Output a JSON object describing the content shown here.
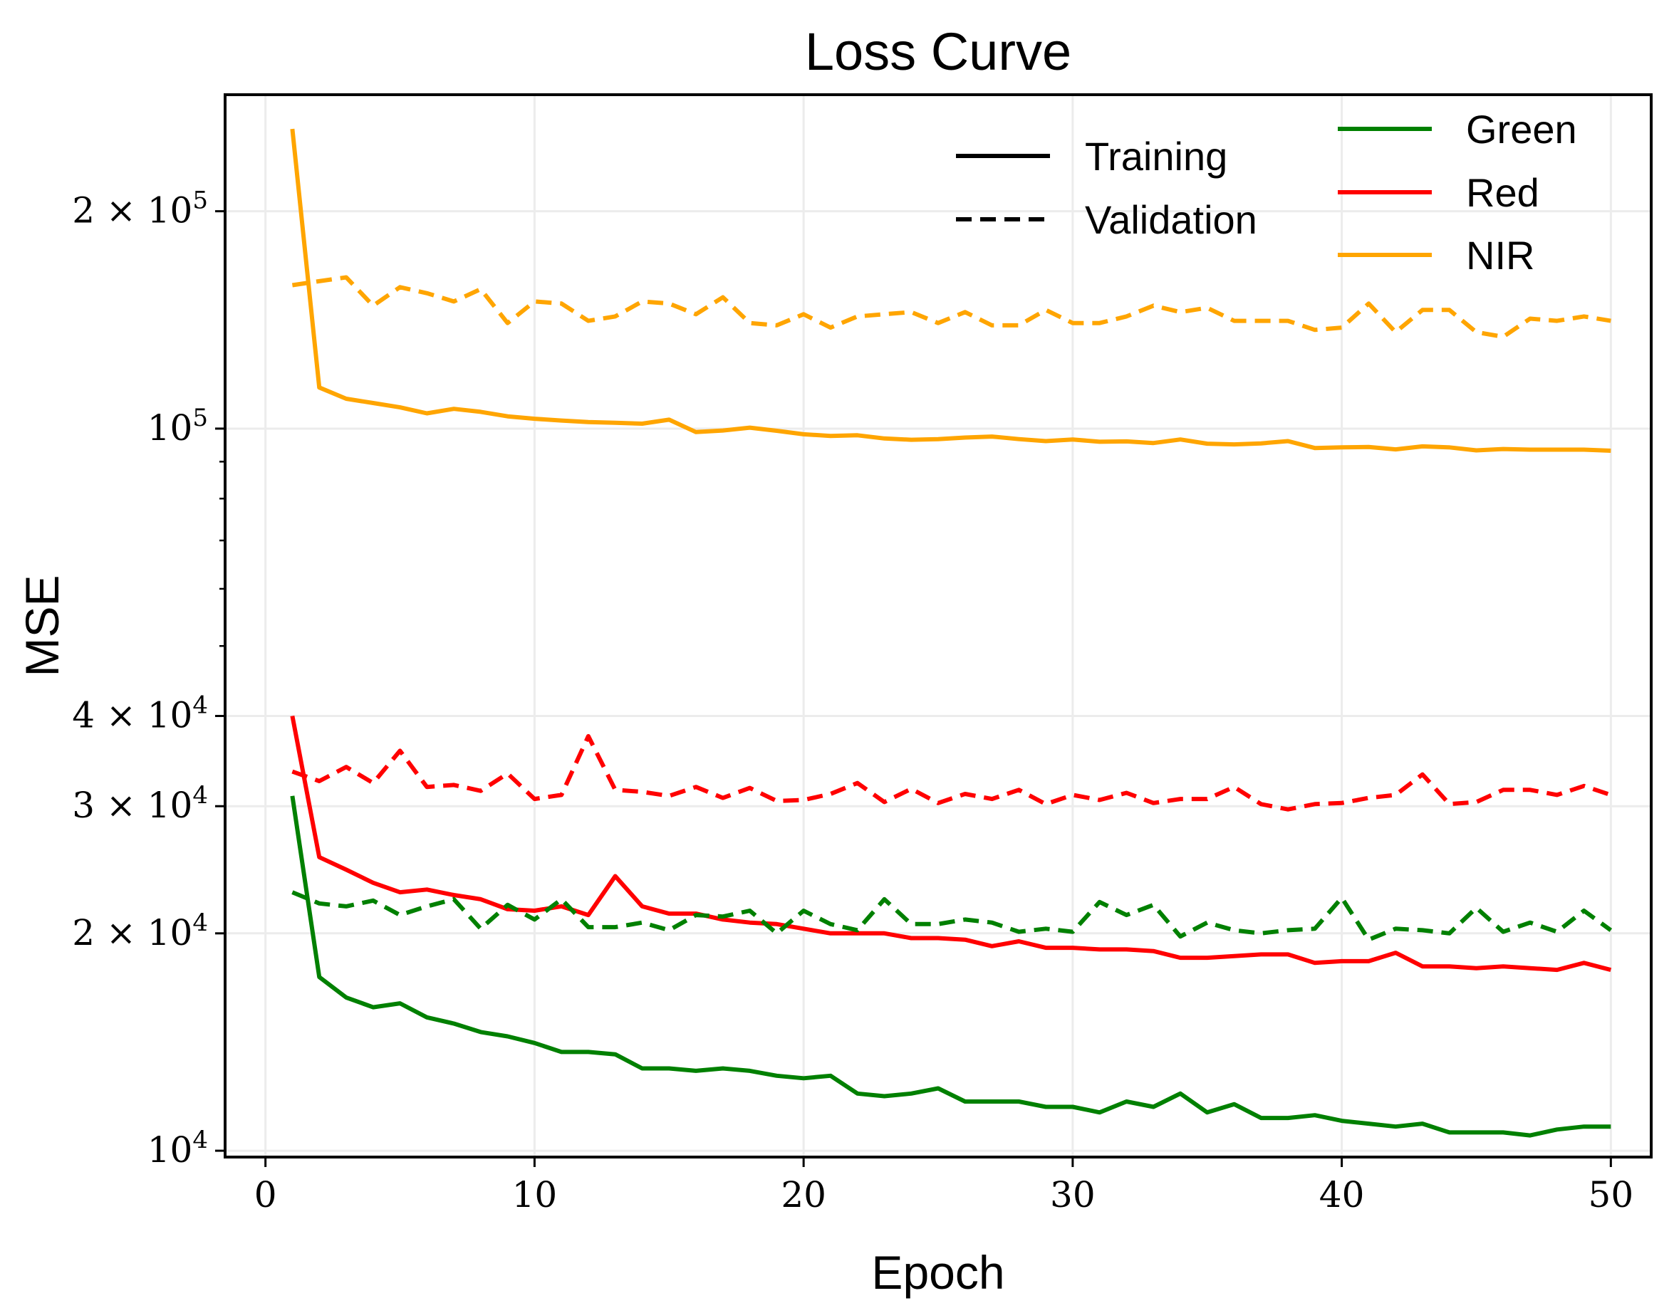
{
  "chart_data": {
    "type": "line",
    "title": "Loss Curve",
    "xlabel": "Epoch",
    "ylabel": "MSE",
    "yscale": "log",
    "xlim": [
      -1.5,
      51.5
    ],
    "ylim": [
      9800,
      290000
    ],
    "grid": true,
    "x_ticks": [
      {
        "value": 0,
        "label": "0"
      },
      {
        "value": 10,
        "label": "10"
      },
      {
        "value": 20,
        "label": "20"
      },
      {
        "value": 30,
        "label": "30"
      },
      {
        "value": 40,
        "label": "40"
      },
      {
        "value": 50,
        "label": "50"
      }
    ],
    "y_ticks_major": [
      {
        "value": 10000,
        "base": "10",
        "exp": "4",
        "prefix": ""
      },
      {
        "value": 20000,
        "base": "10",
        "exp": "4",
        "prefix": "2 × "
      },
      {
        "value": 30000,
        "base": "10",
        "exp": "4",
        "prefix": "3 × "
      },
      {
        "value": 40000,
        "base": "10",
        "exp": "4",
        "prefix": "4 × "
      },
      {
        "value": 100000,
        "base": "10",
        "exp": "5",
        "prefix": ""
      },
      {
        "value": 200000,
        "base": "10",
        "exp": "5",
        "prefix": "2 × "
      }
    ],
    "y_ticks_minor": [
      50000,
      60000,
      70000,
      80000,
      90000
    ],
    "style_legend": [
      {
        "label": "Training",
        "dash": "solid"
      },
      {
        "label": "Validation",
        "dash": "dashed"
      }
    ],
    "color_legend": [
      {
        "label": "Green",
        "color": "#008000"
      },
      {
        "label": "Red",
        "color": "#ff0000"
      },
      {
        "label": "NIR",
        "color": "#ffa500"
      }
    ],
    "x": [
      1,
      2,
      3,
      4,
      5,
      6,
      7,
      8,
      9,
      10,
      11,
      12,
      13,
      14,
      15,
      16,
      17,
      18,
      19,
      20,
      21,
      22,
      23,
      24,
      25,
      26,
      27,
      28,
      29,
      30,
      31,
      32,
      33,
      34,
      35,
      36,
      37,
      38,
      39,
      40,
      41,
      42,
      43,
      44,
      45,
      46,
      47,
      48,
      49,
      50
    ],
    "series": [
      {
        "name": "NIR Training",
        "color": "#ffa500",
        "dash": "solid",
        "values": [
          260000,
          114000,
          110000,
          108500,
          107000,
          105000,
          106500,
          105500,
          104000,
          103200,
          102600,
          102100,
          101900,
          101600,
          102900,
          98900,
          99400,
          100300,
          99300,
          98200,
          97700,
          97900,
          96900,
          96500,
          96700,
          97200,
          97500,
          96700,
          96100,
          96600,
          95900,
          96000,
          95500,
          96600,
          95300,
          95100,
          95400,
          96100,
          94000,
          94200,
          94300,
          93600,
          94500,
          94200,
          93300,
          93700,
          93500,
          93500,
          93500,
          93200
        ]
      },
      {
        "name": "NIR Validation",
        "color": "#ffa500",
        "dash": "dashed",
        "values": [
          158000,
          160000,
          162000,
          148000,
          157000,
          154000,
          150000,
          156000,
          140000,
          150000,
          149000,
          141000,
          143000,
          150000,
          149000,
          144000,
          152000,
          140000,
          139000,
          144000,
          138000,
          143000,
          144000,
          145000,
          140000,
          145000,
          139000,
          139000,
          146000,
          140000,
          140000,
          143000,
          148000,
          145000,
          147000,
          141000,
          141000,
          141000,
          137000,
          138000,
          149000,
          136000,
          146000,
          146000,
          136000,
          134000,
          142000,
          141000,
          143000,
          141000
        ]
      },
      {
        "name": "Red Training",
        "color": "#ff0000",
        "dash": "solid",
        "values": [
          40000,
          25500,
          24500,
          23500,
          22800,
          23000,
          22600,
          22300,
          21600,
          21500,
          21800,
          21200,
          24000,
          21800,
          21300,
          21300,
          20900,
          20700,
          20600,
          20300,
          20000,
          20000,
          20000,
          19700,
          19700,
          19600,
          19200,
          19500,
          19100,
          19100,
          19000,
          19000,
          18900,
          18500,
          18500,
          18600,
          18700,
          18700,
          18200,
          18300,
          18300,
          18800,
          18000,
          18000,
          17900,
          18000,
          17900,
          17800,
          18200,
          17800
        ]
      },
      {
        "name": "Red Validation",
        "color": "#ff0000",
        "dash": "dashed",
        "values": [
          33500,
          32500,
          34000,
          32300,
          35800,
          31900,
          32100,
          31500,
          33300,
          30700,
          31100,
          37500,
          31600,
          31400,
          31000,
          31900,
          30800,
          31800,
          30500,
          30600,
          31200,
          32300,
          30400,
          31700,
          30300,
          31200,
          30700,
          31600,
          30200,
          31100,
          30600,
          31300,
          30300,
          30700,
          30700,
          31900,
          30200,
          29700,
          30200,
          30300,
          30800,
          31100,
          33200,
          30200,
          30400,
          31600,
          31600,
          31100,
          32000,
          31100
        ]
      },
      {
        "name": "Green Training",
        "color": "#008000",
        "dash": "solid",
        "values": [
          31000,
          17400,
          16300,
          15800,
          16000,
          15300,
          15000,
          14600,
          14400,
          14100,
          13700,
          13700,
          13600,
          13000,
          13000,
          12900,
          13000,
          12900,
          12700,
          12600,
          12700,
          12000,
          11900,
          12000,
          12200,
          11700,
          11700,
          11700,
          11500,
          11500,
          11300,
          11700,
          11500,
          12000,
          11300,
          11600,
          11100,
          11100,
          11200,
          11000,
          10900,
          10800,
          10900,
          10600,
          10600,
          10600,
          10500,
          10700,
          10800,
          10800
        ]
      },
      {
        "name": "Green Validation",
        "color": "#008000",
        "dash": "dashed",
        "values": [
          22800,
          22000,
          21800,
          22200,
          21200,
          21800,
          22300,
          20300,
          21900,
          20900,
          22300,
          20400,
          20400,
          20700,
          20200,
          21200,
          21100,
          21500,
          20000,
          21500,
          20600,
          20200,
          22300,
          20600,
          20600,
          20900,
          20700,
          20100,
          20300,
          20100,
          22100,
          21200,
          21900,
          19800,
          20700,
          20200,
          20000,
          20200,
          20300,
          22400,
          19600,
          20300,
          20200,
          20000,
          21700,
          20100,
          20700,
          20100,
          21500,
          20200
        ]
      }
    ]
  }
}
